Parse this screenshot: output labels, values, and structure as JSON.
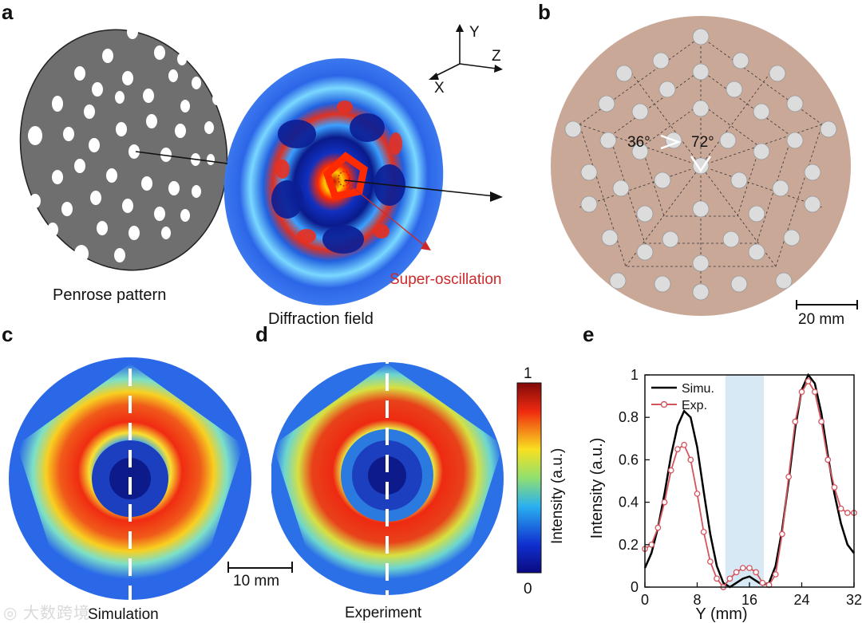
{
  "panels": {
    "a": {
      "letter": "a",
      "penrose_label": "Penrose pattern",
      "diffraction_label": "Diffraction field",
      "super_label": "Super-oscillation",
      "axes": {
        "y": "Y",
        "z": "Z",
        "x": "X"
      }
    },
    "b": {
      "letter": "b",
      "angle1": "36°",
      "angle2": "72°",
      "scalebar": "20 mm"
    },
    "c": {
      "letter": "c",
      "caption": "Simulation"
    },
    "d": {
      "letter": "d",
      "caption": "Experiment",
      "scalebar": "10 mm"
    },
    "colorbar": {
      "max": "1",
      "min": "0",
      "label": "Intensity (a.u.)"
    },
    "e": {
      "letter": "e"
    }
  },
  "watermark": "大数跨境",
  "chart_data": {
    "type": "line",
    "xlabel": "Y (mm)",
    "ylabel": "Intensity (a.u.)",
    "xlim": [
      0,
      32
    ],
    "ylim": [
      0,
      1
    ],
    "x_ticks": [
      "0",
      "8",
      "16",
      "24",
      "32"
    ],
    "y_ticks": [
      "0",
      "0.2",
      "0.4",
      "0.6",
      "0.8",
      "1"
    ],
    "shaded_region": [
      12.3,
      18.2
    ],
    "legend": "top-left",
    "series": [
      {
        "name": "Simu.",
        "color": "#000000",
        "x": [
          0,
          1,
          2,
          3,
          4,
          5,
          6,
          7,
          8,
          9,
          10,
          11,
          12,
          13,
          14,
          15,
          16,
          17,
          18,
          19,
          20,
          21,
          22,
          23,
          24,
          25,
          26,
          27,
          28,
          29,
          30,
          31,
          32
        ],
        "values": [
          0.09,
          0.16,
          0.28,
          0.44,
          0.62,
          0.76,
          0.83,
          0.8,
          0.66,
          0.45,
          0.25,
          0.1,
          0.02,
          0.0,
          0.02,
          0.04,
          0.05,
          0.03,
          0.01,
          0.02,
          0.1,
          0.27,
          0.5,
          0.75,
          0.93,
          1.0,
          0.96,
          0.82,
          0.62,
          0.44,
          0.3,
          0.2,
          0.16
        ]
      },
      {
        "name": "Exp.",
        "color": "#d4555f",
        "x": [
          0,
          1,
          2,
          3,
          4,
          5,
          6,
          7,
          8,
          9,
          10,
          11,
          12,
          13,
          14,
          15,
          16,
          17,
          18,
          19,
          20,
          21,
          22,
          23,
          24,
          25,
          26,
          27,
          28,
          29,
          30,
          31,
          32
        ],
        "values": [
          0.18,
          0.2,
          0.28,
          0.4,
          0.55,
          0.65,
          0.67,
          0.6,
          0.44,
          0.26,
          0.12,
          0.04,
          0.0,
          0.04,
          0.07,
          0.09,
          0.09,
          0.07,
          0.02,
          0.01,
          0.06,
          0.25,
          0.52,
          0.78,
          0.92,
          0.97,
          0.92,
          0.78,
          0.6,
          0.47,
          0.37,
          0.35,
          0.35
        ]
      }
    ]
  }
}
